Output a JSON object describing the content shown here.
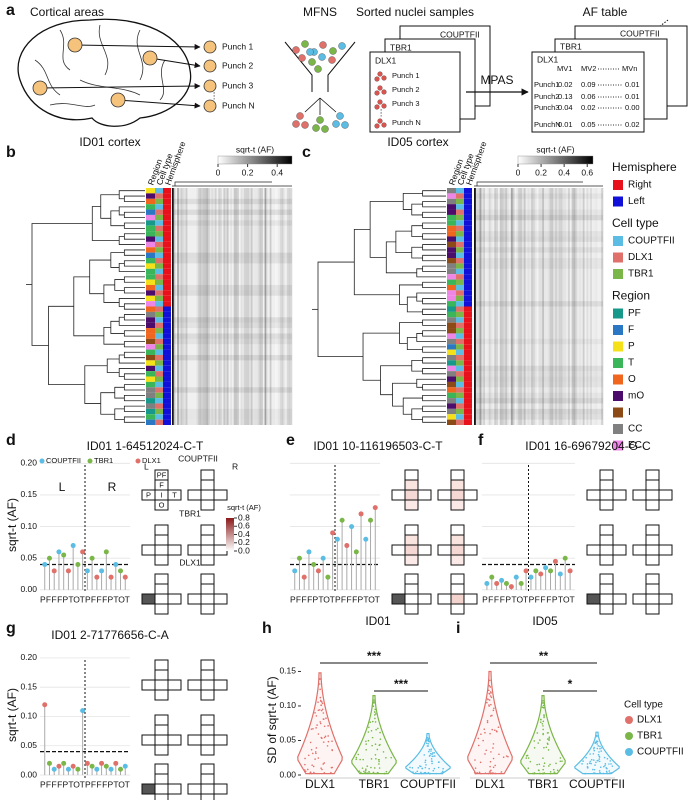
{
  "panel_a": {
    "label": "a",
    "brain_title": "Cortical areas",
    "punches": [
      "Punch 1",
      "Punch 2",
      "Punch 3",
      "Punch N"
    ],
    "ellipsis": "⋮",
    "mfns": "MFNS",
    "sorted_title": "Sorted nuclei samples",
    "cards": [
      {
        "name": "COUPTFII",
        "color": "#4bb3d8"
      },
      {
        "name": "TBR1",
        "color": "#6aaa3a"
      },
      {
        "name": "DLX1",
        "color": "#d9534f"
      }
    ],
    "card_punches": [
      "Punch 1",
      "Punch 2",
      "Punch 3",
      "Punch N"
    ],
    "card_ellipsis": "⋮",
    "arrow_label": "MPAS",
    "table_title": "AF table",
    "table_cards": [
      "COUPTFII",
      "TBR1",
      "DLX1"
    ],
    "table_header": [
      "MV1",
      "MV2",
      "MVn"
    ],
    "table_rows": [
      [
        "Punch1",
        "0.02",
        "0.09",
        "0.01"
      ],
      [
        "Punch2",
        "0.13",
        "0.06",
        "0.01"
      ],
      [
        "Punch3",
        "0.04",
        "0.02",
        "0.00"
      ],
      [
        "PunchN",
        "0.01",
        "0.05",
        "0.02"
      ]
    ]
  },
  "panel_b": {
    "label": "b",
    "title": "ID01 cortex",
    "columns": [
      "Region",
      "Cell type",
      "Hemisphere"
    ],
    "colorbar_label": "sqrt-t (AF)",
    "colorbar_lim": [
      0,
      0.5
    ],
    "colorbar_ticks": [
      0,
      0.2,
      0.4
    ]
  },
  "panel_c": {
    "label": "c",
    "title": "ID05 cortex",
    "columns": [
      "Region",
      "Cell type",
      "Hemisphere"
    ],
    "colorbar_label": "sqrt-t (AF)",
    "colorbar_lim": [
      0,
      0.65
    ],
    "colorbar_ticks": [
      0,
      0.2,
      0.4,
      0.6
    ]
  },
  "legend": {
    "groups": [
      {
        "title": "Hemisphere",
        "items": [
          {
            "name": "Right",
            "color": "#e8101a"
          },
          {
            "name": "Left",
            "color": "#1010d8"
          }
        ]
      },
      {
        "title": "Cell type",
        "items": [
          {
            "name": "COUPTFII",
            "color": "#5bbde4"
          },
          {
            "name": "DLX1",
            "color": "#e0706a"
          },
          {
            "name": "TBR1",
            "color": "#7ab648"
          }
        ]
      },
      {
        "title": "Region",
        "items": [
          {
            "name": "PF",
            "color": "#16998a"
          },
          {
            "name": "F",
            "color": "#2a78c4"
          },
          {
            "name": "P",
            "color": "#f4e11a"
          },
          {
            "name": "T",
            "color": "#3bb55a"
          },
          {
            "name": "O",
            "color": "#f0661e"
          },
          {
            "name": "mO",
            "color": "#4b0c6b"
          },
          {
            "name": "I",
            "color": "#8b4a16"
          },
          {
            "name": "CC",
            "color": "#808080"
          },
          {
            "name": "EC",
            "color": "#ee86e8"
          }
        ]
      }
    ]
  },
  "panel_d": {
    "label": "d",
    "title": "ID01 1-64512024-C-T",
    "series": [
      {
        "name": "COUPTFII",
        "color": "#5bbde4"
      },
      {
        "name": "TBR1",
        "color": "#7ab648"
      },
      {
        "name": "DLX1",
        "color": "#e0706a"
      }
    ],
    "ylabel": "sqrt-t (AF)",
    "ylim": [
      -0.005,
      0.21
    ],
    "yticks": [
      {
        "value": 0,
        "label": "0.00"
      },
      {
        "value": 0.05,
        "label": "0.05"
      },
      {
        "value": 0.1,
        "label": "0.10"
      },
      {
        "value": 0.15,
        "label": "0.15"
      },
      {
        "value": 0.2,
        "label": "0.20"
      }
    ],
    "threshold": 0.04,
    "sides": [
      "L",
      "R"
    ],
    "x_labels": [
      "P",
      "F",
      "F",
      "F",
      "P",
      "T",
      "O",
      "T",
      "P",
      "F",
      "F",
      "F",
      "P",
      "T",
      "O",
      "T"
    ],
    "values": [
      0.04,
      0.05,
      0.03,
      0.06,
      0.055,
      0.03,
      0.07,
      0.04,
      0.06,
      0.03,
      0.05,
      0.02,
      0.03,
      0.06,
      0.02,
      0.04,
      0.03,
      0.02
    ],
    "groups": [
      "COUPTFII",
      "TBR1",
      "DLX1",
      "COUPTFII",
      "TBR1",
      "DLX1",
      "COUPTFII",
      "TBR1",
      "DLX1",
      "COUPTFII",
      "TBR1",
      "DLX1",
      "COUPTFII",
      "TBR1",
      "DLX1",
      "COUPTFII",
      "TBR1",
      "DLX1"
    ],
    "cross_rows": [
      "COUPTFII",
      "TBR1",
      "DLX1"
    ],
    "cross_cols": [
      "L",
      "R"
    ],
    "regions": [
      "PF",
      "F",
      "P",
      "I",
      "T",
      "O"
    ],
    "colorbar_label": "sqrt-t (AF)",
    "colorbar_lim": [
      0,
      0.8
    ],
    "colorbar_ticks": [
      0.8,
      0.6,
      0.4,
      0.2,
      {
        "value": 0,
        "label": "0.0"
      }
    ]
  },
  "panel_e": {
    "label": "e",
    "title": "ID01 10-116196503-C-T",
    "threshold": 0.04,
    "x_labels": [
      "P",
      "F",
      "F",
      "F",
      "P",
      "T",
      "O",
      "T",
      "P",
      "F",
      "F",
      "F",
      "P",
      "T",
      "O",
      "T"
    ],
    "values": [
      0.03,
      0.05,
      0.02,
      0.06,
      0.04,
      0.03,
      0.05,
      0.02,
      0.09,
      0.08,
      0.11,
      0.07,
      0.1,
      0.06,
      0.12,
      0.08,
      0.11,
      0.13
    ],
    "groups": [
      "COUPTFII",
      "TBR1",
      "DLX1",
      "COUPTFII",
      "TBR1",
      "DLX1",
      "COUPTFII",
      "TBR1",
      "DLX1",
      "COUPTFII",
      "TBR1",
      "DLX1",
      "COUPTFII",
      "TBR1",
      "DLX1",
      "COUPTFII",
      "TBR1",
      "DLX1"
    ]
  },
  "panel_f": {
    "label": "f",
    "title": "ID01 16-69679204-G-C",
    "threshold": 0.04,
    "x_labels": [
      "P",
      "F",
      "F",
      "F",
      "P",
      "T",
      "O",
      "T",
      "P",
      "F",
      "F",
      "F",
      "P",
      "T",
      "O",
      "T"
    ],
    "values": [
      0.01,
      0.02,
      0.01,
      0.015,
      0.01,
      0.005,
      0.02,
      0.01,
      0.03,
      0.02,
      0.03,
      0.025,
      0.035,
      0.03,
      0.045,
      0.025,
      0.05,
      0.03
    ],
    "groups": [
      "COUPTFII",
      "TBR1",
      "DLX1",
      "COUPTFII",
      "TBR1",
      "DLX1",
      "COUPTFII",
      "TBR1",
      "DLX1",
      "COUPTFII",
      "TBR1",
      "DLX1",
      "COUPTFII",
      "TBR1",
      "DLX1",
      "COUPTFII",
      "TBR1",
      "DLX1"
    ]
  },
  "panel_g": {
    "label": "g",
    "title": "ID01 2-71776656-C-A",
    "ylabel": "sqrt-t (AF)",
    "threshold": 0.04,
    "ylim": [
      -0.005,
      0.21
    ],
    "yticks": [
      {
        "value": 0,
        "label": "0.00"
      },
      {
        "value": 0.05,
        "label": "0.05"
      },
      {
        "value": 0.1,
        "label": "0.10"
      },
      {
        "value": 0.15,
        "label": "0.15"
      },
      {
        "value": 0.2,
        "label": "0.20"
      }
    ],
    "x_labels": [
      "P",
      "F",
      "F",
      "F",
      "P",
      "T",
      "O",
      "T",
      "P",
      "F",
      "F",
      "F",
      "P",
      "T",
      "O",
      "T"
    ],
    "values": [
      0.12,
      0.02,
      0.01,
      0.015,
      0.02,
      0.01,
      0.015,
      0.01,
      0.11,
      0.02,
      0.015,
      0.01,
      0.02,
      0.015,
      0.01,
      0.02,
      0.01,
      0.015
    ],
    "groups": [
      "DLX1",
      "TBR1",
      "COUPTFII",
      "DLX1",
      "TBR1",
      "COUPTFII",
      "DLX1",
      "TBR1",
      "COUPTFII",
      "DLX1",
      "TBR1",
      "COUPTFII",
      "DLX1",
      "TBR1",
      "COUPTFII",
      "DLX1",
      "TBR1",
      "COUPTFII"
    ]
  },
  "panel_h": {
    "label": "h",
    "title": "ID01",
    "ylabel": "SD of sqrt-t (AF)",
    "categories": [
      "DLX1",
      "TBR1",
      "COUPTFII"
    ],
    "values": [
      0.148,
      0.115,
      0.06
    ],
    "ylim": [
      0,
      0.155
    ],
    "yticks": [
      {
        "value": 0,
        "label": "0.00"
      },
      {
        "value": 0.05,
        "label": "0.05"
      },
      {
        "value": 0.1,
        "label": "0.10"
      },
      {
        "value": 0.15,
        "label": "0.15"
      }
    ],
    "comparisons": [
      {
        "from": "DLX1",
        "to": "COUPTFII",
        "label": "***"
      },
      {
        "from": "TBR1",
        "to": "COUPTFII",
        "label": "***"
      }
    ]
  },
  "panel_i": {
    "label": "i",
    "title": "ID05",
    "categories": [
      "DLX1",
      "TBR1",
      "COUPTFII"
    ],
    "values": [
      0.15,
      0.115,
      0.062
    ],
    "comparisons": [
      {
        "from": "DLX1",
        "to": "COUPTFII",
        "label": "**"
      },
      {
        "from": "TBR1",
        "to": "COUPTFII",
        "label": "*"
      }
    ]
  },
  "violin_legend": {
    "title": "Cell type",
    "names": [
      "DLX1",
      "TBR1",
      "COUPTFII"
    ],
    "colors": [
      "#e0706a",
      "#7ab648",
      "#5bbde4"
    ]
  }
}
